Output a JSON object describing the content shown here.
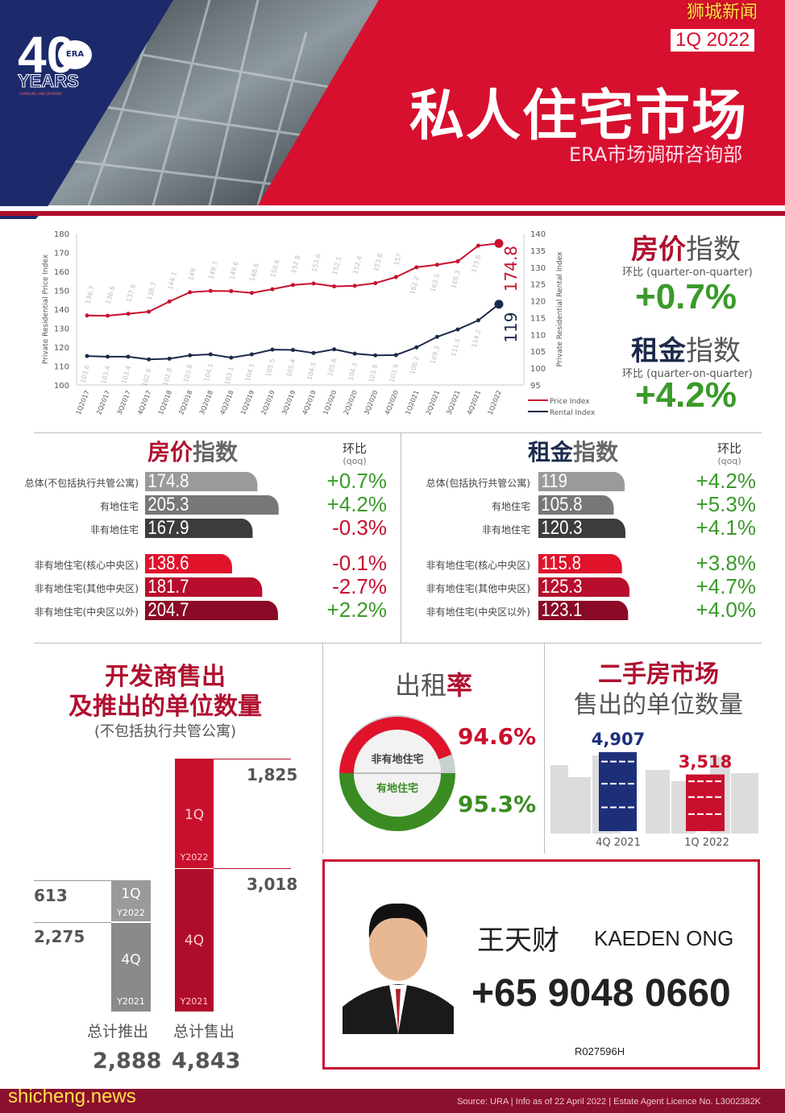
{
  "header": {
    "logo_number": "40",
    "logo_brand": "ERA",
    "logo_years": "YEARS",
    "logo_tagline": "CHANGING AND UPGRADE",
    "period": "1Q 2022",
    "title": "私人住宅市场",
    "subtitle": "ERA市场调研咨询部",
    "watermark": "狮城新闻",
    "colors": {
      "navy": "#1c2a6b",
      "red": "#d7102f"
    }
  },
  "summary": {
    "price": {
      "title_a": "房价",
      "title_b": "指数",
      "qoq_label": "环比 (quarter-on-quarter)",
      "value": "+0.7%"
    },
    "rental": {
      "title_a": "租金",
      "title_b": "指数",
      "qoq_label": "环比 (quarter-on-quarter)",
      "value": "+4.2%"
    }
  },
  "chart_data": [
    {
      "type": "line",
      "xlabel": "",
      "ylabel": "Private Residential Price Index",
      "y2label": "Private Residential Rental Index",
      "ylim": [
        100,
        180
      ],
      "y2lim": [
        95,
        140
      ],
      "yticks": [
        100,
        110,
        120,
        130,
        140,
        150,
        160,
        170,
        180
      ],
      "y2ticks": [
        95,
        100,
        105,
        110,
        115,
        120,
        125,
        130,
        135,
        140
      ],
      "grid": false,
      "legend": "bottom-right",
      "categories": [
        "1Q2017",
        "2Q2017",
        "3Q2017",
        "4Q2017",
        "1Q2018",
        "2Q2018",
        "3Q2018",
        "4Q2018",
        "1Q2019",
        "2Q2019",
        "3Q2019",
        "4Q2019",
        "1Q2020",
        "2Q2020",
        "3Q2020",
        "4Q2020",
        "1Q2021",
        "2Q2021",
        "3Q2021",
        "4Q2021",
        "1Q2022"
      ],
      "series": [
        {
          "name": "Price Index",
          "axis": "left",
          "color": "#c8102e",
          "values": [
            136.7,
            136.6,
            137.6,
            138.7,
            144.1,
            149,
            149.7,
            149.6,
            148.6,
            150.6,
            152.8,
            153.6,
            152.1,
            152.4,
            153.8,
            157,
            162.2,
            163.5,
            165.3,
            173.6,
            174.8
          ],
          "last_label": "174.8"
        },
        {
          "name": "Rental Index",
          "axis": "right",
          "color": "#1c2a4a",
          "values": [
            103.6,
            103.4,
            103.4,
            102.6,
            102.8,
            103.8,
            104.1,
            103.1,
            104.1,
            105.5,
            105.4,
            104.5,
            105.6,
            104.3,
            103.8,
            103.9,
            106.2,
            109.3,
            111.5,
            114.2,
            119
          ],
          "last_label": "119"
        }
      ]
    },
    {
      "type": "bar",
      "title": "房价指数",
      "qoq_header": "环比",
      "qoq_sub": "(qoq)",
      "rows": [
        {
          "label": "总体(不包括执行共管公寓)",
          "value": 174.8,
          "text": "174.8",
          "qoq": "+0.7%",
          "color": "#9a9a9a"
        },
        {
          "label": "有地住宅",
          "value": 205.3,
          "text": "205.3",
          "qoq": "+4.2%",
          "color": "#777777"
        },
        {
          "label": "非有地住宅",
          "value": 167.9,
          "text": "167.9",
          "qoq": "-0.3%",
          "color": "#3c3c3e"
        },
        {
          "label": "非有地住宅(核心中央区)",
          "value": 138.6,
          "text": "138.6",
          "qoq": "-0.1%",
          "color": "#e0132b"
        },
        {
          "label": "非有地住宅(其他中央区)",
          "value": 181.7,
          "text": "181.7",
          "qoq": "-2.7%",
          "color": "#b80d2c"
        },
        {
          "label": "非有地住宅(中央区以外)",
          "value": 204.7,
          "text": "204.7",
          "qoq": "+2.2%",
          "color": "#8a0a26"
        }
      ]
    },
    {
      "type": "bar",
      "title": "租金指数",
      "qoq_header": "环比",
      "qoq_sub": "(qoq)",
      "rows": [
        {
          "label": "总体(包括执行共管公寓)",
          "value": 119,
          "text": "119",
          "qoq": "+4.2%",
          "color": "#9a9a9a"
        },
        {
          "label": "有地住宅",
          "value": 105.8,
          "text": "105.8",
          "qoq": "+5.3%",
          "color": "#777777"
        },
        {
          "label": "非有地住宅",
          "value": 120.3,
          "text": "120.3",
          "qoq": "+4.1%",
          "color": "#3c3c3e"
        },
        {
          "label": "非有地住宅(核心中央区)",
          "value": 115.8,
          "text": "115.8",
          "qoq": "+3.8%",
          "color": "#e0132b"
        },
        {
          "label": "非有地住宅(其他中央区)",
          "value": 125.3,
          "text": "125.3",
          "qoq": "+4.7%",
          "color": "#b80d2c"
        },
        {
          "label": "非有地住宅(中央区以外)",
          "value": 123.1,
          "text": "123.1",
          "qoq": "+4.0%",
          "color": "#8a0a26"
        }
      ]
    }
  ],
  "developer": {
    "title1": "开发商售出",
    "title2": "及推出的单位数量",
    "note": "(不包括执行共管公寓)",
    "launched": {
      "q1_value": "613",
      "q1_label": "1Q",
      "q1_year": "Y2022",
      "q4_value": "2,275",
      "q4_label": "4Q",
      "q4_year": "Y2021",
      "total_label": "总计推出",
      "total": "2,888"
    },
    "sold": {
      "q1_value": "1,825",
      "q1_label": "1Q",
      "q1_year": "Y2022",
      "q4_value": "3,018",
      "q4_label": "4Q",
      "q4_year": "Y2021",
      "total_label": "总计售出",
      "total": "4,843"
    }
  },
  "occupancy": {
    "title_a": "出租",
    "title_b": "率",
    "non_landed_label": "非有地住宅",
    "non_landed": "94.6%",
    "non_landed_value": 94.6,
    "landed_label": "有地住宅",
    "landed": "95.3%",
    "landed_value": 95.3
  },
  "resale": {
    "title1": "二手房市场",
    "title2": "售出的单位数量",
    "bars": [
      {
        "period": "4Q 2021",
        "value": 4907,
        "text": "4,907",
        "color": "#1e2f7a"
      },
      {
        "period": "1Q 2022",
        "value": 3518,
        "text": "3,518",
        "color": "#c8102e"
      }
    ]
  },
  "agent": {
    "name_cn": "王天财",
    "name_en": "KAEDEN ONG",
    "phone": "+65 9048 0660",
    "reg": "R027596H"
  },
  "footer": {
    "site": "shicheng.news",
    "source": "Source: URA | Info as of 22 April 2022 | Estate Agent Licence No. L3002382K"
  }
}
